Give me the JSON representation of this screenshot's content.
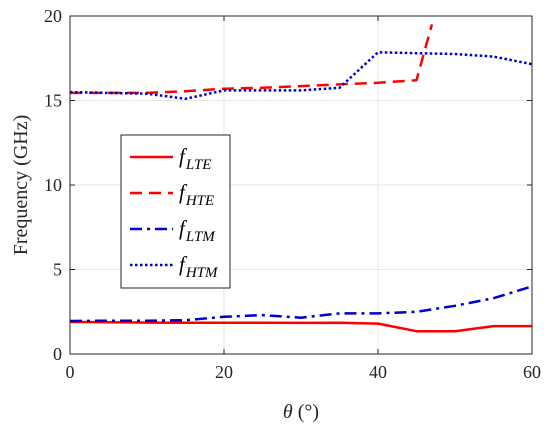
{
  "chart_data": {
    "type": "line",
    "xlabel_symbol": "θ",
    "xlabel_unit": "(°)",
    "ylabel": "Frequency (GHz)",
    "xlim": [
      0,
      60
    ],
    "ylim": [
      0,
      20
    ],
    "xticks": [
      0,
      20,
      40,
      60
    ],
    "yticks": [
      0,
      5,
      10,
      15,
      20
    ],
    "grid": true,
    "legend_position": "center-left",
    "series": [
      {
        "name": "f_LTE",
        "label_main": "f",
        "label_sub": "LTE",
        "color": "#ff0000",
        "line_style": "solid",
        "x": [
          0,
          5,
          10,
          15,
          20,
          25,
          30,
          35,
          40,
          45,
          50,
          55,
          60
        ],
        "y": [
          1.9,
          1.88,
          1.86,
          1.85,
          1.85,
          1.85,
          1.84,
          1.85,
          1.8,
          1.35,
          1.35,
          1.65,
          1.65
        ]
      },
      {
        "name": "f_HTE",
        "label_main": "f",
        "label_sub": "HTE",
        "color": "#ff0000",
        "line_style": "dashed",
        "x": [
          0,
          5,
          10,
          15,
          20,
          25,
          30,
          35,
          40,
          45,
          47
        ],
        "y": [
          15.45,
          15.45,
          15.45,
          15.55,
          15.7,
          15.75,
          15.85,
          15.95,
          16.05,
          16.2,
          19.5
        ]
      },
      {
        "name": "f_LTM",
        "label_main": "f",
        "label_sub": "LTM",
        "color": "#0000cc",
        "line_style": "dashdot",
        "x": [
          0,
          5,
          10,
          15,
          20,
          25,
          30,
          35,
          40,
          45,
          50,
          55,
          60
        ],
        "y": [
          1.95,
          1.97,
          1.97,
          2.0,
          2.2,
          2.3,
          2.15,
          2.4,
          2.4,
          2.5,
          2.85,
          3.3,
          4.0
        ]
      },
      {
        "name": "f_HTM",
        "label_main": "f",
        "label_sub": "HTM",
        "color": "#0000cc",
        "line_style": "dotted",
        "x": [
          0,
          5,
          10,
          15,
          20,
          25,
          30,
          35,
          40,
          45,
          50,
          55,
          60
        ],
        "y": [
          15.5,
          15.45,
          15.4,
          15.1,
          15.6,
          15.6,
          15.6,
          15.75,
          17.85,
          17.8,
          17.75,
          17.6,
          17.15
        ]
      }
    ]
  }
}
